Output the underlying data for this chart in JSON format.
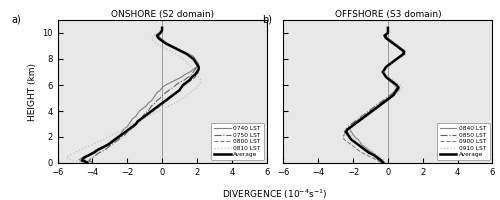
{
  "title_left": "ONSHORE (S2 domain)",
  "title_right": "OFFSHORE (S3 domain)",
  "label_a": "a)",
  "label_b": "b)",
  "ylabel": "HEIGHT (km)",
  "xlabel_display": "DIVERGENCE (10$^{-4}$s$^{-1}$)",
  "xlim": [
    -6,
    6
  ],
  "ylim": [
    0,
    11
  ],
  "yticks": [
    0,
    2,
    4,
    6,
    8,
    10
  ],
  "xticks": [
    -6,
    -4,
    -2,
    0,
    2,
    4,
    6
  ],
  "height_km": [
    0.05,
    0.2,
    0.4,
    0.6,
    0.8,
    1.0,
    1.2,
    1.4,
    1.6,
    1.8,
    2.0,
    2.2,
    2.4,
    2.6,
    2.8,
    3.0,
    3.2,
    3.4,
    3.6,
    3.8,
    4.0,
    4.2,
    4.4,
    4.6,
    4.8,
    5.0,
    5.2,
    5.4,
    5.6,
    5.8,
    6.0,
    6.2,
    6.4,
    6.6,
    6.8,
    7.0,
    7.2,
    7.4,
    7.6,
    7.8,
    8.0,
    8.2,
    8.4,
    8.6,
    8.8,
    9.0,
    9.2,
    9.4,
    9.6,
    9.8,
    10.0,
    10.2,
    10.4
  ],
  "left_lines": {
    "0740": {
      "color": "#808080",
      "linestyle": "-",
      "linewidth": 0.8,
      "data": [
        -4.2,
        -4.5,
        -4.4,
        -4.2,
        -4.0,
        -3.8,
        -3.5,
        -3.2,
        -3.0,
        -2.8,
        -2.6,
        -2.4,
        -2.3,
        -2.2,
        -2.0,
        -1.9,
        -1.8,
        -1.7,
        -1.5,
        -1.4,
        -1.3,
        -1.1,
        -0.9,
        -0.8,
        -0.6,
        -0.5,
        -0.4,
        -0.3,
        -0.1,
        0.0,
        0.2,
        0.5,
        0.8,
        1.1,
        1.3,
        1.6,
        1.8,
        2.0,
        2.1,
        2.0,
        1.9,
        1.8,
        1.5,
        1.2,
        0.9,
        0.6,
        0.3,
        0.1,
        -0.1,
        -0.2,
        -0.1,
        0.0,
        0.0
      ]
    },
    "0750": {
      "color": "#606060",
      "linestyle": "-.",
      "linewidth": 0.8,
      "data": [
        -4.0,
        -4.2,
        -4.0,
        -3.8,
        -3.6,
        -3.3,
        -3.1,
        -2.9,
        -2.7,
        -2.5,
        -2.3,
        -2.1,
        -2.0,
        -1.8,
        -1.6,
        -1.5,
        -1.3,
        -1.2,
        -1.1,
        -1.0,
        -0.8,
        -0.7,
        -0.6,
        -0.4,
        -0.3,
        -0.1,
        0.0,
        0.2,
        0.4,
        0.6,
        0.8,
        1.0,
        1.3,
        1.5,
        1.7,
        1.8,
        1.9,
        2.0,
        2.0,
        1.9,
        1.8,
        1.6,
        1.4,
        1.1,
        0.8,
        0.5,
        0.2,
        0.0,
        -0.2,
        -0.3,
        -0.1,
        0.0,
        0.0
      ]
    },
    "0800": {
      "color": "#808080",
      "linestyle": "--",
      "linewidth": 0.8,
      "data": [
        -4.5,
        -4.8,
        -4.6,
        -4.3,
        -4.0,
        -3.7,
        -3.5,
        -3.2,
        -2.9,
        -2.7,
        -2.5,
        -2.2,
        -2.0,
        -1.8,
        -1.6,
        -1.5,
        -1.3,
        -1.1,
        -0.9,
        -0.7,
        -0.5,
        -0.3,
        -0.1,
        0.1,
        0.3,
        0.5,
        0.6,
        0.8,
        1.0,
        1.1,
        1.3,
        1.5,
        1.7,
        1.9,
        2.0,
        2.1,
        2.1,
        2.1,
        2.0,
        1.9,
        1.8,
        1.6,
        1.4,
        1.1,
        0.8,
        0.5,
        0.2,
        0.0,
        -0.1,
        -0.2,
        -0.1,
        0.0,
        0.0
      ]
    },
    "0810": {
      "color": "#c0c0c0",
      "linestyle": ":",
      "linewidth": 0.9,
      "data": [
        -4.5,
        -5.2,
        -5.5,
        -5.3,
        -5.0,
        -4.7,
        -4.4,
        -4.0,
        -3.7,
        -3.4,
        -3.1,
        -2.8,
        -2.5,
        -2.2,
        -1.9,
        -1.6,
        -1.4,
        -1.1,
        -0.8,
        -0.5,
        -0.2,
        0.1,
        0.4,
        0.7,
        1.0,
        1.2,
        1.4,
        1.6,
        1.8,
        2.0,
        2.1,
        2.2,
        2.2,
        2.1,
        2.0,
        1.9,
        1.8,
        1.7,
        1.5,
        1.4,
        1.2,
        1.0,
        0.8,
        0.5,
        0.2,
        -0.1,
        -0.3,
        -0.5,
        -0.6,
        -0.5,
        -0.3,
        -0.1,
        0.0
      ]
    },
    "Average": {
      "color": "#000000",
      "linestyle": "-",
      "linewidth": 1.8,
      "data": [
        -4.3,
        -4.6,
        -4.5,
        -4.2,
        -3.9,
        -3.7,
        -3.4,
        -3.1,
        -2.9,
        -2.7,
        -2.5,
        -2.3,
        -2.1,
        -1.9,
        -1.7,
        -1.5,
        -1.4,
        -1.2,
        -1.0,
        -0.8,
        -0.6,
        -0.4,
        -0.2,
        0.0,
        0.2,
        0.4,
        0.6,
        0.8,
        1.0,
        1.1,
        1.2,
        1.4,
        1.6,
        1.7,
        1.9,
        2.0,
        2.1,
        2.1,
        2.0,
        1.9,
        1.8,
        1.6,
        1.4,
        1.1,
        0.8,
        0.5,
        0.2,
        0.0,
        -0.2,
        -0.3,
        -0.1,
        0.0,
        0.0
      ]
    }
  },
  "right_lines": {
    "0840": {
      "color": "#808080",
      "linestyle": "-",
      "linewidth": 0.8,
      "data": [
        -0.2,
        -0.3,
        -0.5,
        -0.7,
        -0.9,
        -1.1,
        -1.3,
        -1.5,
        -1.6,
        -1.7,
        -1.9,
        -2.0,
        -2.1,
        -2.2,
        -2.1,
        -2.0,
        -1.8,
        -1.6,
        -1.4,
        -1.2,
        -1.0,
        -0.8,
        -0.6,
        -0.4,
        -0.2,
        0.0,
        0.2,
        0.3,
        0.4,
        0.5,
        0.4,
        0.2,
        0.0,
        -0.1,
        -0.2,
        -0.3,
        -0.2,
        -0.1,
        0.1,
        0.3,
        0.5,
        0.8,
        1.0,
        1.0,
        0.8,
        0.6,
        0.4,
        0.2,
        0.0,
        -0.1,
        0.0,
        0.0,
        0.0
      ]
    },
    "0850": {
      "color": "#606060",
      "linestyle": "-.",
      "linewidth": 0.8,
      "data": [
        -0.3,
        -0.5,
        -0.7,
        -0.9,
        -1.1,
        -1.3,
        -1.5,
        -1.7,
        -1.9,
        -2.1,
        -2.3,
        -2.4,
        -2.5,
        -2.4,
        -2.3,
        -2.1,
        -1.9,
        -1.7,
        -1.5,
        -1.3,
        -1.1,
        -0.9,
        -0.7,
        -0.5,
        -0.3,
        -0.1,
        0.1,
        0.3,
        0.5,
        0.6,
        0.5,
        0.3,
        0.1,
        -0.1,
        -0.2,
        -0.3,
        -0.2,
        -0.1,
        0.1,
        0.3,
        0.5,
        0.7,
        0.9,
        0.9,
        0.7,
        0.5,
        0.3,
        0.1,
        -0.1,
        -0.2,
        0.0,
        0.0,
        0.0
      ]
    },
    "0900": {
      "color": "#808080",
      "linestyle": "--",
      "linewidth": 0.8,
      "data": [
        -0.4,
        -0.6,
        -0.9,
        -1.2,
        -1.5,
        -1.7,
        -1.9,
        -2.1,
        -2.3,
        -2.5,
        -2.6,
        -2.5,
        -2.4,
        -2.3,
        -2.1,
        -1.9,
        -1.7,
        -1.5,
        -1.3,
        -1.1,
        -0.9,
        -0.7,
        -0.5,
        -0.3,
        -0.1,
        0.1,
        0.3,
        0.5,
        0.6,
        0.7,
        0.5,
        0.3,
        0.1,
        -0.1,
        -0.2,
        -0.3,
        -0.2,
        -0.1,
        0.1,
        0.3,
        0.5,
        0.7,
        0.9,
        0.9,
        0.7,
        0.5,
        0.3,
        0.1,
        -0.1,
        -0.2,
        0.0,
        0.0,
        0.0
      ]
    },
    "0910": {
      "color": "#c0c0c0",
      "linestyle": ":",
      "linewidth": 0.9,
      "data": [
        -0.1,
        -0.2,
        -0.4,
        -0.6,
        -0.8,
        -1.0,
        -1.2,
        -1.4,
        -1.6,
        -1.8,
        -2.0,
        -2.1,
        -2.2,
        -2.1,
        -2.0,
        -1.8,
        -1.6,
        -1.4,
        -1.2,
        -1.0,
        -0.8,
        -0.6,
        -0.4,
        -0.2,
        0.0,
        0.2,
        0.4,
        0.6,
        0.7,
        0.8,
        0.7,
        0.5,
        0.3,
        0.1,
        -0.1,
        -0.2,
        -0.1,
        0.0,
        0.2,
        0.4,
        0.6,
        0.8,
        1.0,
        1.0,
        0.8,
        0.6,
        0.4,
        0.2,
        -0.1,
        -0.2,
        0.0,
        0.0,
        0.0
      ]
    },
    "Average": {
      "color": "#000000",
      "linestyle": "-",
      "linewidth": 1.8,
      "data": [
        -0.3,
        -0.4,
        -0.6,
        -0.8,
        -1.1,
        -1.3,
        -1.5,
        -1.7,
        -1.9,
        -2.1,
        -2.2,
        -2.3,
        -2.4,
        -2.3,
        -2.1,
        -1.9,
        -1.7,
        -1.5,
        -1.3,
        -1.1,
        -0.9,
        -0.7,
        -0.5,
        -0.3,
        -0.1,
        0.1,
        0.3,
        0.4,
        0.5,
        0.6,
        0.5,
        0.3,
        0.1,
        -0.1,
        -0.2,
        -0.3,
        -0.2,
        -0.1,
        0.1,
        0.3,
        0.5,
        0.7,
        0.9,
        0.9,
        0.7,
        0.5,
        0.3,
        0.1,
        -0.1,
        -0.2,
        0.0,
        0.0,
        0.0
      ]
    }
  },
  "left_legend": [
    "0740 LST",
    "0750 LST",
    "0800 LST",
    "0810 LST",
    "Average"
  ],
  "right_legend": [
    "0840 LST",
    "0850 LST",
    "0900 LST",
    "0910 LST",
    "Average"
  ],
  "background_color": "#e8e8e8"
}
